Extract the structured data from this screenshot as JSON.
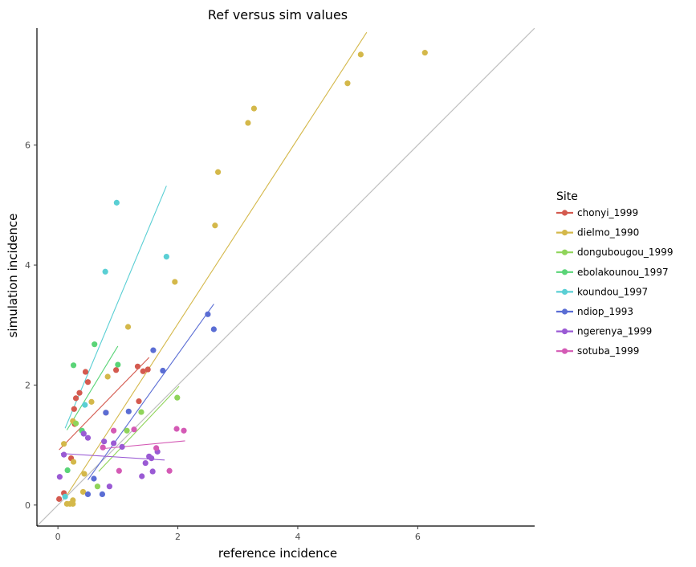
{
  "chart_data": {
    "type": "scatter",
    "title": "Ref versus sim values",
    "xlabel": "reference incidence",
    "ylabel": "simulation incidence",
    "xlim": [
      -0.35,
      7.95
    ],
    "ylim": [
      -0.35,
      7.95
    ],
    "x_ticks": [
      0,
      2,
      4,
      6
    ],
    "y_ticks": [
      0,
      2,
      4,
      6
    ],
    "grid": false,
    "identity_line": {
      "color": "#bfbfbf"
    },
    "legend": {
      "title": "Site",
      "position": "right"
    },
    "series": [
      {
        "name": "chonyi_1999",
        "color": "#d45a4f",
        "points": [
          [
            0.02,
            0.1
          ],
          [
            0.1,
            0.2
          ],
          [
            0.22,
            0.78
          ],
          [
            0.27,
            1.6
          ],
          [
            0.28,
            1.35
          ],
          [
            0.3,
            1.78
          ],
          [
            0.36,
            1.87
          ],
          [
            0.46,
            2.22
          ],
          [
            0.5,
            2.05
          ],
          [
            0.97,
            2.25
          ],
          [
            1.33,
            2.31
          ],
          [
            1.42,
            2.23
          ],
          [
            1.5,
            2.26
          ],
          [
            1.35,
            1.73
          ],
          [
            0.8,
            1.54
          ]
        ],
        "fit": [
          [
            0.02,
            0.92
          ],
          [
            1.52,
            2.46
          ]
        ]
      },
      {
        "name": "dielmo_1990",
        "color": "#d4b84a",
        "points": [
          [
            0.15,
            0.02
          ],
          [
            0.2,
            0.02
          ],
          [
            0.25,
            0.02
          ],
          [
            0.25,
            0.08
          ],
          [
            0.42,
            0.22
          ],
          [
            0.44,
            0.52
          ],
          [
            0.26,
            0.72
          ],
          [
            0.1,
            1.02
          ],
          [
            0.25,
            1.4
          ],
          [
            0.56,
            1.72
          ],
          [
            0.83,
            2.14
          ],
          [
            1.17,
            2.97
          ],
          [
            1.95,
            3.72
          ],
          [
            2.62,
            4.66
          ],
          [
            2.67,
            5.55
          ],
          [
            3.17,
            6.37
          ],
          [
            3.27,
            6.61
          ],
          [
            4.83,
            7.03
          ],
          [
            5.05,
            7.51
          ],
          [
            6.12,
            7.54
          ]
        ],
        "fit": [
          [
            0.12,
            0.12
          ],
          [
            5.15,
            7.88
          ]
        ]
      },
      {
        "name": "dongubougou_1999",
        "color": "#8fd45a",
        "points": [
          [
            0.3,
            1.36
          ],
          [
            0.66,
            0.31
          ],
          [
            1.15,
            1.24
          ],
          [
            1.39,
            1.55
          ],
          [
            1.99,
            1.79
          ]
        ],
        "fit": [
          [
            0.68,
            0.56
          ],
          [
            2.02,
            1.98
          ]
        ]
      },
      {
        "name": "ebolakounou_1997",
        "color": "#5ad477",
        "points": [
          [
            0.26,
            2.33
          ],
          [
            0.16,
            0.58
          ],
          [
            0.4,
            1.24
          ],
          [
            0.61,
            2.68
          ],
          [
            1.0,
            2.34
          ]
        ],
        "fit": [
          [
            0.15,
            1.25
          ],
          [
            1.0,
            2.65
          ]
        ]
      },
      {
        "name": "koundou_1997",
        "color": "#5acfd4",
        "points": [
          [
            0.12,
            0.14
          ],
          [
            0.43,
            1.19
          ],
          [
            0.45,
            1.67
          ],
          [
            0.79,
            3.89
          ],
          [
            0.98,
            5.04
          ],
          [
            1.81,
            4.14
          ]
        ],
        "fit": [
          [
            0.12,
            1.28
          ],
          [
            1.81,
            5.32
          ]
        ]
      },
      {
        "name": "ndiop_1993",
        "color": "#5a6dd4",
        "points": [
          [
            0.5,
            0.18
          ],
          [
            0.6,
            0.44
          ],
          [
            0.74,
            0.18
          ],
          [
            0.8,
            1.54
          ],
          [
            1.18,
            1.56
          ],
          [
            1.59,
            2.58
          ],
          [
            1.75,
            2.24
          ],
          [
            2.5,
            3.18
          ],
          [
            2.6,
            2.93
          ]
        ],
        "fit": [
          [
            0.5,
            0.42
          ],
          [
            2.6,
            3.35
          ]
        ]
      },
      {
        "name": "ngerenya_1999",
        "color": "#9a5ad4",
        "points": [
          [
            0.03,
            0.47
          ],
          [
            0.1,
            0.84
          ],
          [
            0.43,
            1.19
          ],
          [
            0.5,
            1.12
          ],
          [
            0.77,
            1.06
          ],
          [
            0.86,
            0.31
          ],
          [
            0.93,
            1.03
          ],
          [
            1.07,
            0.97
          ],
          [
            1.4,
            0.48
          ],
          [
            1.46,
            0.7
          ],
          [
            1.52,
            0.81
          ],
          [
            1.56,
            0.78
          ],
          [
            1.58,
            0.56
          ],
          [
            1.66,
            0.89
          ]
        ],
        "fit": [
          [
            0.05,
            0.86
          ],
          [
            1.78,
            0.75
          ]
        ]
      },
      {
        "name": "sotuba_1999",
        "color": "#d45ab5",
        "points": [
          [
            0.75,
            0.96
          ],
          [
            0.93,
            1.24
          ],
          [
            1.02,
            0.57
          ],
          [
            1.27,
            1.26
          ],
          [
            1.64,
            0.95
          ],
          [
            1.86,
            0.57
          ],
          [
            1.98,
            1.27
          ],
          [
            2.1,
            1.24
          ]
        ],
        "fit": [
          [
            0.75,
            0.94
          ],
          [
            2.12,
            1.07
          ]
        ]
      }
    ]
  }
}
